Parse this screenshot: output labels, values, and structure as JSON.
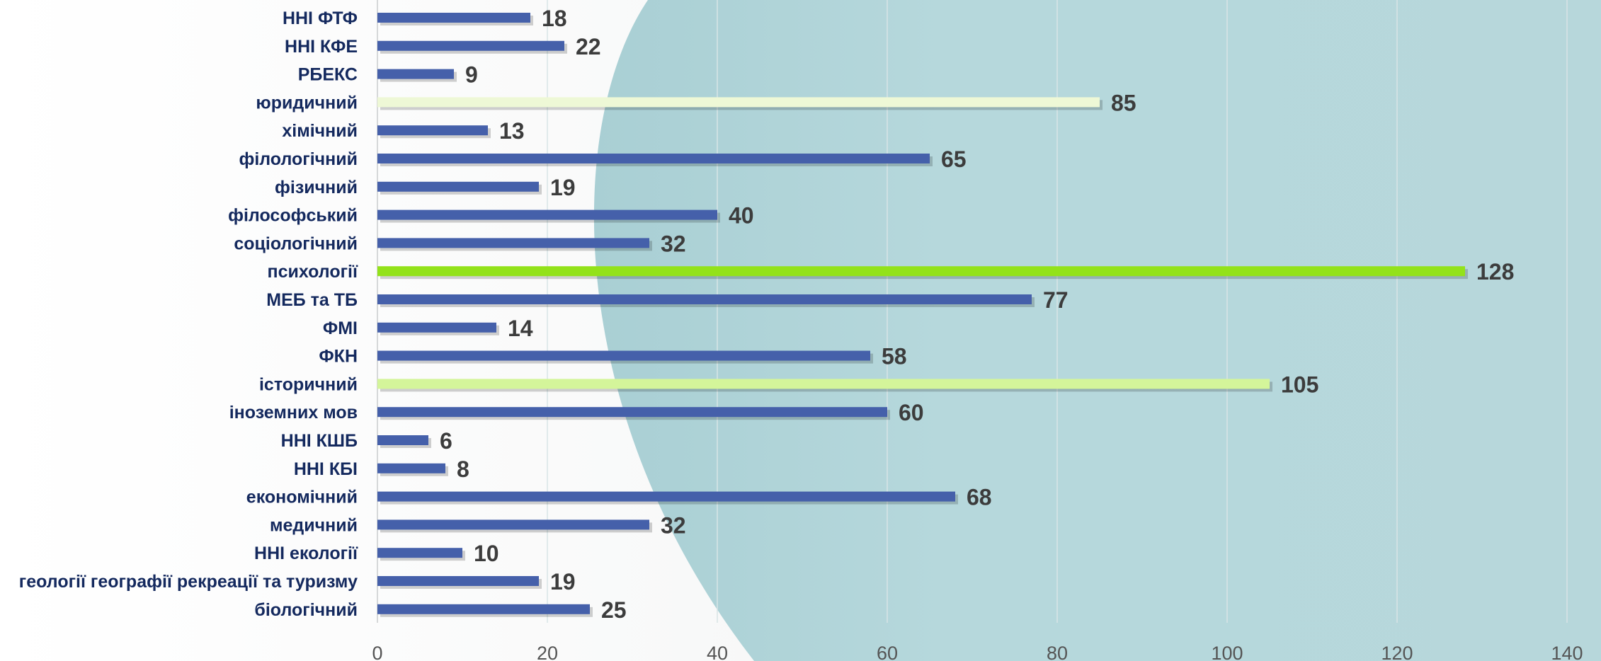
{
  "chart_data": {
    "type": "bar",
    "orientation": "horizontal",
    "title": "",
    "xlabel": "",
    "ylabel": "",
    "xlim": [
      0,
      140
    ],
    "x_ticks": [
      0,
      20,
      40,
      60,
      80,
      100,
      120,
      140
    ],
    "grid": "vertical",
    "legend": "none",
    "categories": [
      "ННІ ФТФ",
      "ННІ КФЕ",
      "РБЕКС",
      "юридичний",
      "хімічний",
      "філологічний",
      "фізичний",
      "філософський",
      "соціологічний",
      "психології",
      "МЕБ та ТБ",
      "ФМІ",
      "ФКН",
      "історичний",
      "іноземних мов",
      "ННІ КШБ",
      "ННІ КБІ",
      "економічний",
      "медичний",
      "ННІ екології",
      "геології географії рекреації та туризму",
      "біологічний"
    ],
    "values": [
      18,
      22,
      9,
      85,
      13,
      65,
      19,
      40,
      32,
      128,
      77,
      14,
      58,
      105,
      60,
      6,
      8,
      68,
      32,
      10,
      19,
      25
    ],
    "colors": {
      "default_bar": "#4560AA",
      "top1": "#93E21A",
      "top2": "#D4F59A",
      "top3": "#EEF8D6",
      "category_label": "#14295E",
      "value_label": "#3C3C3C",
      "tick_label": "#555555",
      "plot_background": "#B5D7DB",
      "grid": "#D8E4E6"
    }
  }
}
